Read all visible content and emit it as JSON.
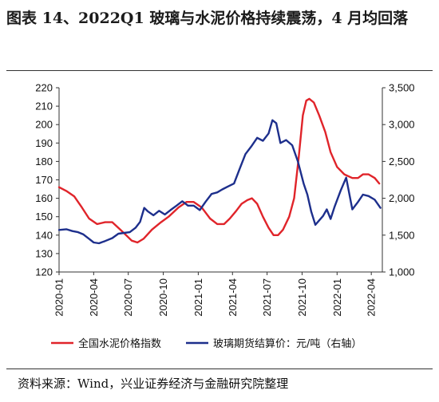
{
  "header": {
    "title": "图表 14、2022Q1 玻璃与水泥价格持续震荡，4 月均回落"
  },
  "footer": {
    "source": "资料来源：Wind，兴业证券经济与金融研究院整理"
  },
  "colors": {
    "cement": "#e0242a",
    "glass": "#1d2f8c",
    "axis": "#333333"
  },
  "chart_data": {
    "type": "line",
    "x_axis": {
      "ticks": [
        "2020-01",
        "2020-04",
        "2020-07",
        "2020-10",
        "2021-01",
        "2021-04",
        "2021-07",
        "2021-10",
        "2022-01",
        "2022-04"
      ],
      "range": [
        "2020-01-01",
        "2022-04-30"
      ]
    },
    "y_left": {
      "min": 120,
      "max": 220,
      "ticks": [
        "120",
        "130",
        "140",
        "150",
        "160",
        "170",
        "180",
        "190",
        "200",
        "210",
        "220"
      ]
    },
    "y_right": {
      "min": 1000,
      "max": 3500,
      "ticks": [
        "1,000",
        "1,500",
        "2,000",
        "2,500",
        "3,000",
        "3,500"
      ]
    },
    "series": [
      {
        "name": "全国水泥价格指数",
        "axis": "left",
        "points": [
          [
            "2020-01-01",
            166
          ],
          [
            "2020-01-20",
            164
          ],
          [
            "2020-02-10",
            161
          ],
          [
            "2020-03-01",
            155
          ],
          [
            "2020-03-20",
            149
          ],
          [
            "2020-04-10",
            146
          ],
          [
            "2020-05-01",
            147
          ],
          [
            "2020-05-20",
            147
          ],
          [
            "2020-06-10",
            143
          ],
          [
            "2020-06-25",
            140
          ],
          [
            "2020-07-10",
            137
          ],
          [
            "2020-07-25",
            136
          ],
          [
            "2020-08-10",
            138
          ],
          [
            "2020-09-01",
            143
          ],
          [
            "2020-09-25",
            147
          ],
          [
            "2020-10-15",
            150
          ],
          [
            "2020-11-10",
            155
          ],
          [
            "2020-12-01",
            158
          ],
          [
            "2020-12-20",
            158
          ],
          [
            "2021-01-10",
            155
          ],
          [
            "2021-02-01",
            149
          ],
          [
            "2021-02-20",
            146
          ],
          [
            "2021-03-10",
            146
          ],
          [
            "2021-03-25",
            149
          ],
          [
            "2021-04-10",
            153
          ],
          [
            "2021-04-25",
            157
          ],
          [
            "2021-05-10",
            159
          ],
          [
            "2021-05-22",
            160
          ],
          [
            "2021-06-05",
            157
          ],
          [
            "2021-06-20",
            150
          ],
          [
            "2021-07-05",
            144
          ],
          [
            "2021-07-18",
            140
          ],
          [
            "2021-07-30",
            140
          ],
          [
            "2021-08-12",
            143
          ],
          [
            "2021-08-28",
            150
          ],
          [
            "2021-09-10",
            160
          ],
          [
            "2021-09-22",
            182
          ],
          [
            "2021-10-03",
            205
          ],
          [
            "2021-10-12",
            213
          ],
          [
            "2021-10-20",
            214
          ],
          [
            "2021-11-01",
            212
          ],
          [
            "2021-11-15",
            205
          ],
          [
            "2021-12-01",
            196
          ],
          [
            "2021-12-15",
            185
          ],
          [
            "2022-01-01",
            177
          ],
          [
            "2022-01-20",
            173
          ],
          [
            "2022-02-10",
            171
          ],
          [
            "2022-02-25",
            171
          ],
          [
            "2022-03-10",
            173
          ],
          [
            "2022-03-25",
            173
          ],
          [
            "2022-04-10",
            171
          ],
          [
            "2022-04-22",
            168
          ]
        ]
      },
      {
        "name": "玻璃期货结算价：元/吨（右轴）",
        "axis": "right",
        "points": [
          [
            "2020-01-01",
            1570
          ],
          [
            "2020-01-20",
            1580
          ],
          [
            "2020-02-05",
            1555
          ],
          [
            "2020-02-20",
            1540
          ],
          [
            "2020-03-05",
            1510
          ],
          [
            "2020-03-20",
            1450
          ],
          [
            "2020-04-01",
            1400
          ],
          [
            "2020-04-15",
            1390
          ],
          [
            "2020-05-01",
            1420
          ],
          [
            "2020-05-20",
            1460
          ],
          [
            "2020-06-05",
            1520
          ],
          [
            "2020-06-20",
            1530
          ],
          [
            "2020-07-05",
            1540
          ],
          [
            "2020-07-20",
            1600
          ],
          [
            "2020-08-01",
            1680
          ],
          [
            "2020-08-12",
            1870
          ],
          [
            "2020-08-22",
            1820
          ],
          [
            "2020-09-05",
            1770
          ],
          [
            "2020-09-20",
            1830
          ],
          [
            "2020-10-05",
            1780
          ],
          [
            "2020-10-20",
            1840
          ],
          [
            "2020-11-05",
            1900
          ],
          [
            "2020-11-20",
            1960
          ],
          [
            "2020-12-05",
            1900
          ],
          [
            "2020-12-20",
            1900
          ],
          [
            "2021-01-05",
            1840
          ],
          [
            "2021-01-20",
            1950
          ],
          [
            "2021-02-05",
            2060
          ],
          [
            "2021-02-20",
            2080
          ],
          [
            "2021-03-05",
            2120
          ],
          [
            "2021-03-20",
            2160
          ],
          [
            "2021-04-05",
            2200
          ],
          [
            "2021-04-20",
            2400
          ],
          [
            "2021-05-05",
            2600
          ],
          [
            "2021-05-20",
            2700
          ],
          [
            "2021-06-05",
            2820
          ],
          [
            "2021-06-20",
            2780
          ],
          [
            "2021-07-05",
            2880
          ],
          [
            "2021-07-15",
            3060
          ],
          [
            "2021-07-25",
            3020
          ],
          [
            "2021-08-05",
            2750
          ],
          [
            "2021-08-20",
            2790
          ],
          [
            "2021-09-05",
            2720
          ],
          [
            "2021-09-20",
            2500
          ],
          [
            "2021-10-05",
            2200
          ],
          [
            "2021-10-15",
            2050
          ],
          [
            "2021-10-25",
            1820
          ],
          [
            "2021-11-05",
            1640
          ],
          [
            "2021-11-15",
            1700
          ],
          [
            "2021-11-25",
            1760
          ],
          [
            "2021-12-05",
            1850
          ],
          [
            "2021-12-15",
            1720
          ],
          [
            "2021-12-25",
            1880
          ],
          [
            "2022-01-10",
            2100
          ],
          [
            "2022-01-25",
            2280
          ],
          [
            "2022-02-10",
            1850
          ],
          [
            "2022-02-25",
            1950
          ],
          [
            "2022-03-10",
            2050
          ],
          [
            "2022-03-25",
            2030
          ],
          [
            "2022-04-10",
            1980
          ],
          [
            "2022-04-25",
            1870
          ]
        ]
      }
    ],
    "legend": {
      "position": "bottom"
    }
  }
}
